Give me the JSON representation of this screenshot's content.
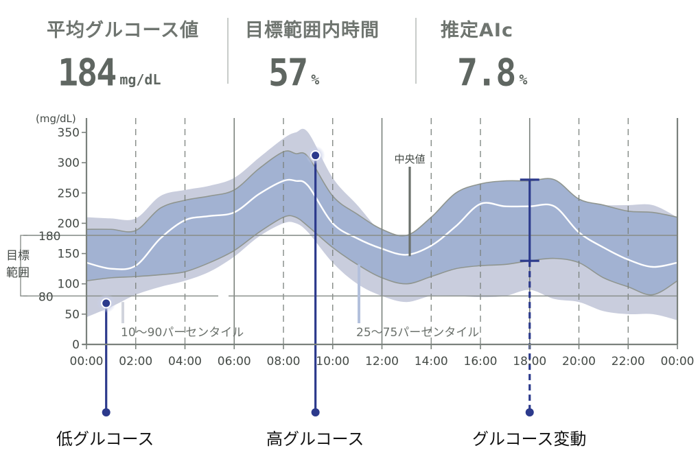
{
  "stats": [
    {
      "label": "平均グルコース値",
      "value": "184",
      "unit": "mg/dL"
    },
    {
      "label": "目標範囲内時間",
      "value": "57",
      "unit": "%"
    },
    {
      "label": "推定AIc",
      "value": "7.8",
      "unit": "%"
    }
  ],
  "captions": {
    "low": "低グルコース",
    "high": "高グルコース",
    "variability": "グルコース変動"
  },
  "chart_data": {
    "type": "area",
    "unit_label": "(mg/dL)",
    "ylim": [
      0,
      350
    ],
    "yticks": [
      0,
      50,
      100,
      150,
      200,
      250,
      300,
      350
    ],
    "xlim": [
      0,
      24
    ],
    "x_ticks": [
      {
        "h": 0,
        "label": "00:00"
      },
      {
        "h": 2,
        "label": "02:00"
      },
      {
        "h": 4,
        "label": "04:00"
      },
      {
        "h": 6,
        "label": "06:00"
      },
      {
        "h": 8,
        "label": "08:00"
      },
      {
        "h": 10,
        "label": "10:00"
      },
      {
        "h": 12,
        "label": "12:00"
      },
      {
        "h": 14,
        "label": "14:00"
      },
      {
        "h": 16,
        "label": "16:00"
      },
      {
        "h": 18,
        "label": "18:00"
      },
      {
        "h": 20,
        "label": "20:00"
      },
      {
        "h": 22,
        "label": "22:00"
      },
      {
        "h": 24,
        "label": "00:00"
      }
    ],
    "target_range": {
      "low": 80,
      "high": 180,
      "low_label": "80",
      "high_label": "180",
      "label": "目標範囲"
    },
    "series": {
      "p10_p90": {
        "x": [
          0,
          1,
          2,
          3,
          4,
          5,
          6,
          7,
          8,
          8.5,
          9,
          10,
          11,
          12,
          13,
          14,
          15,
          16,
          17,
          18,
          19,
          20,
          21,
          22,
          23,
          24
        ],
        "low": [
          45,
          62,
          82,
          95,
          105,
          120,
          145,
          178,
          200,
          200,
          185,
          135,
          100,
          80,
          70,
          80,
          80,
          78,
          80,
          90,
          75,
          70,
          55,
          50,
          50,
          40
        ],
        "high": [
          210,
          208,
          208,
          245,
          255,
          262,
          275,
          308,
          340,
          350,
          350,
          275,
          230,
          185,
          170,
          200,
          230,
          240,
          240,
          230,
          230,
          235,
          230,
          230,
          230,
          210
        ]
      },
      "p25_p75": {
        "x": [
          0,
          1,
          2,
          3,
          4,
          5,
          6,
          7,
          8,
          8.5,
          9,
          10,
          11,
          12,
          13,
          14,
          15,
          16,
          17,
          18,
          19,
          20,
          21,
          22,
          23,
          24
        ],
        "low": [
          105,
          110,
          112,
          115,
          120,
          135,
          155,
          185,
          210,
          210,
          195,
          160,
          132,
          110,
          100,
          112,
          125,
          130,
          132,
          138,
          142,
          135,
          110,
          95,
          82,
          105
        ],
        "high": [
          190,
          190,
          188,
          225,
          238,
          245,
          255,
          290,
          318,
          315,
          310,
          245,
          215,
          190,
          180,
          210,
          250,
          265,
          270,
          270,
          272,
          240,
          230,
          220,
          218,
          210
        ]
      },
      "median": {
        "x": [
          0,
          1,
          2,
          3,
          4,
          5,
          6,
          7,
          8,
          8.5,
          9,
          10,
          11,
          12,
          13,
          14,
          15,
          16,
          17,
          18,
          19,
          20,
          21,
          22,
          23,
          24
        ],
        "values": [
          135,
          125,
          130,
          175,
          205,
          212,
          218,
          248,
          270,
          270,
          262,
          200,
          175,
          158,
          148,
          163,
          195,
          232,
          228,
          228,
          228,
          185,
          160,
          140,
          128,
          135
        ]
      }
    },
    "annotations": {
      "median_label": "中央値",
      "p10_p90_label": "10〜90パーセンタイル",
      "p25_p75_label": "25〜75パーセンタイル"
    },
    "markers": {
      "low_point": {
        "h": 0.8,
        "value": 68
      },
      "high_point": {
        "h": 9.3,
        "value": 312
      },
      "variability_bar": {
        "h": 18.0,
        "low": 138,
        "high": 272
      }
    },
    "colors": {
      "outer_band": "#c9cddd",
      "inner_band": "#a2b2d2",
      "median_line": "#ffffff",
      "marker": "#2c3a8c",
      "grid": "#7a817c",
      "target_line": "#8a908c",
      "band_edge": "#8f958f"
    }
  }
}
